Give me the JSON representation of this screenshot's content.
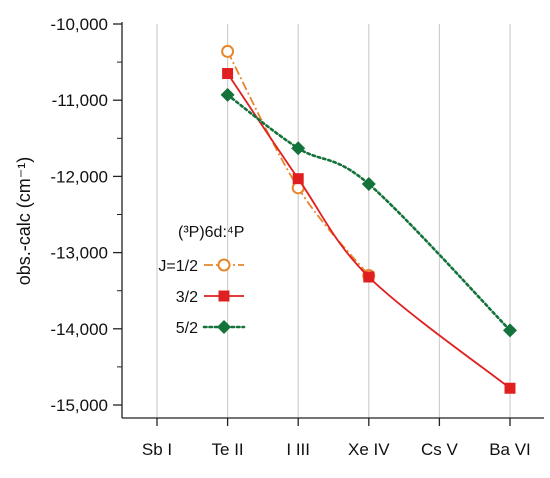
{
  "chart_data": {
    "type": "line",
    "categories": [
      "Sb I",
      "Te II",
      "I III",
      "Xe IV",
      "Cs V",
      "Ba VI"
    ],
    "ylabel": "obs.-calc (cm⁻¹)",
    "ylim": [
      -15200,
      -10000
    ],
    "yticks": [
      -10000,
      -11000,
      -12000,
      -13000,
      -14000,
      -15000
    ],
    "ytick_labels": [
      "-10,000",
      "-11,000",
      "-12,000",
      "-13,000",
      "-14,000",
      "-15,000"
    ],
    "grid": true,
    "legend_position": "center-left",
    "legend_title": "(³P)6d:⁴P",
    "series": [
      {
        "name": "J=1/2",
        "color": "#e8862a",
        "marker": "open-circle",
        "line_style": "dash-dot",
        "x": [
          "Te II",
          "I III",
          "Xe IV"
        ],
        "values": [
          -10360,
          -12150,
          -13300
        ]
      },
      {
        "name": "3/2",
        "color": "#e02020",
        "marker": "square",
        "line_style": "solid",
        "x": [
          "Te II",
          "I III",
          "Xe IV",
          "Ba VI"
        ],
        "values": [
          -10650,
          -12030,
          -13320,
          -14780
        ]
      },
      {
        "name": "5/2",
        "color": "#13733a",
        "marker": "diamond",
        "line_style": "dotted",
        "x": [
          "Te II",
          "I III",
          "Xe IV",
          "Ba VI"
        ],
        "values": [
          -10930,
          -11630,
          -12100,
          -14020
        ]
      }
    ]
  }
}
